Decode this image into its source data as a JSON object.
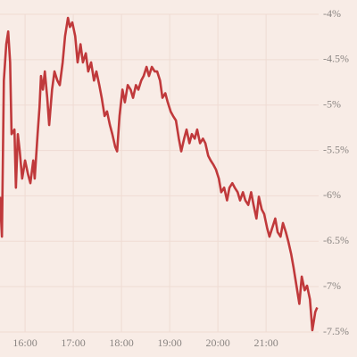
{
  "chart_data": {
    "type": "line",
    "x": [
      15.48,
      15.52,
      15.56,
      15.61,
      15.65,
      15.69,
      15.72,
      15.78,
      15.81,
      15.85,
      15.89,
      15.94,
      16.0,
      16.06,
      16.11,
      16.17,
      16.2,
      16.26,
      16.3,
      16.33,
      16.37,
      16.41,
      16.46,
      16.5,
      16.56,
      16.61,
      16.67,
      16.72,
      16.78,
      16.83,
      16.89,
      16.93,
      16.98,
      17.04,
      17.09,
      17.15,
      17.2,
      17.26,
      17.31,
      17.37,
      17.43,
      17.48,
      17.54,
      17.59,
      17.65,
      17.7,
      17.76,
      17.81,
      17.87,
      17.91,
      17.96,
      18.02,
      18.07,
      18.13,
      18.19,
      18.24,
      18.3,
      18.35,
      18.41,
      18.46,
      18.52,
      18.57,
      18.63,
      18.69,
      18.74,
      18.8,
      18.85,
      18.91,
      18.96,
      19.02,
      19.07,
      19.13,
      19.19,
      19.24,
      19.3,
      19.35,
      19.41,
      19.46,
      19.52,
      19.57,
      19.63,
      19.69,
      19.74,
      19.8,
      19.85,
      19.91,
      19.96,
      20.02,
      20.07,
      20.13,
      20.19,
      20.24,
      20.3,
      20.35,
      20.41,
      20.46,
      20.52,
      20.57,
      20.63,
      20.69,
      20.74,
      20.8,
      20.85,
      20.91,
      20.96,
      21.02,
      21.07,
      21.13,
      21.19,
      21.24,
      21.3,
      21.35,
      21.41,
      21.46,
      21.52,
      21.57,
      21.63,
      21.69,
      21.74,
      21.8,
      21.85,
      21.91,
      21.96,
      22.02,
      22.06
    ],
    "series": [
      {
        "color": "#c0393b",
        "values": [
          -6.01,
          -6.45,
          -4.73,
          -4.33,
          -4.19,
          -4.53,
          -5.32,
          -5.27,
          -5.91,
          -5.32,
          -5.51,
          -5.81,
          -5.61,
          -5.76,
          -5.86,
          -5.61,
          -5.81,
          -5.32,
          -5.02,
          -4.68,
          -4.83,
          -4.63,
          -4.92,
          -5.22,
          -4.83,
          -4.63,
          -4.73,
          -4.78,
          -4.53,
          -4.24,
          -4.04,
          -4.14,
          -4.09,
          -4.24,
          -4.53,
          -4.33,
          -4.53,
          -4.43,
          -4.63,
          -4.53,
          -4.73,
          -4.63,
          -4.78,
          -4.92,
          -5.12,
          -5.07,
          -5.22,
          -5.32,
          -5.46,
          -5.51,
          -5.12,
          -4.83,
          -4.97,
          -4.78,
          -4.83,
          -4.92,
          -4.78,
          -4.83,
          -4.73,
          -4.68,
          -4.58,
          -4.68,
          -4.58,
          -4.63,
          -4.63,
          -4.73,
          -4.92,
          -4.87,
          -4.97,
          -5.07,
          -5.12,
          -5.17,
          -5.37,
          -5.51,
          -5.37,
          -5.27,
          -5.42,
          -5.32,
          -5.37,
          -5.27,
          -5.42,
          -5.37,
          -5.42,
          -5.56,
          -5.61,
          -5.66,
          -5.71,
          -5.81,
          -5.96,
          -5.91,
          -6.05,
          -5.91,
          -5.86,
          -5.91,
          -5.96,
          -6.05,
          -5.96,
          -6.05,
          -6.1,
          -5.96,
          -6.1,
          -6.25,
          -6.01,
          -6.15,
          -6.2,
          -6.35,
          -6.45,
          -6.35,
          -6.25,
          -6.4,
          -6.45,
          -6.3,
          -6.4,
          -6.5,
          -6.64,
          -6.79,
          -6.99,
          -7.19,
          -6.89,
          -7.04,
          -6.99,
          -7.14,
          -7.48,
          -7.28,
          -7.23
        ]
      }
    ],
    "xlim": [
      15.48,
      22.09
    ],
    "xticks": [
      {
        "value": 16,
        "label": "16:00"
      },
      {
        "value": 17,
        "label": "17:00"
      },
      {
        "value": 18,
        "label": "18:00"
      },
      {
        "value": 19,
        "label": "19:00"
      },
      {
        "value": 20,
        "label": "20:00"
      },
      {
        "value": 21,
        "label": "21:00"
      }
    ],
    "ylim": [
      -7.5,
      -4
    ],
    "yticks": [
      {
        "value": -4,
        "label": "-4%"
      },
      {
        "value": -4.5,
        "label": "-4.5%"
      },
      {
        "value": -5,
        "label": "-5%"
      },
      {
        "value": -5.5,
        "label": "-5.5%"
      },
      {
        "value": -6,
        "label": "-6%"
      },
      {
        "value": -6.5,
        "label": "-6.5%"
      },
      {
        "value": -7,
        "label": "-7%"
      },
      {
        "value": -7.5,
        "label": "-7.5%"
      }
    ],
    "grid": true
  }
}
